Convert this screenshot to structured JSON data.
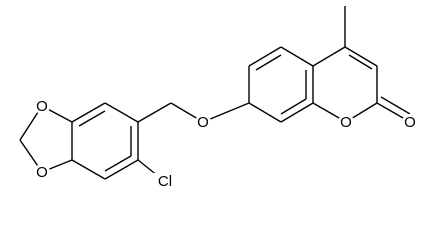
{
  "atoms": {
    "labels": [
      "O",
      "O",
      "O",
      "O",
      "O",
      "Cl"
    ]
  }
}
